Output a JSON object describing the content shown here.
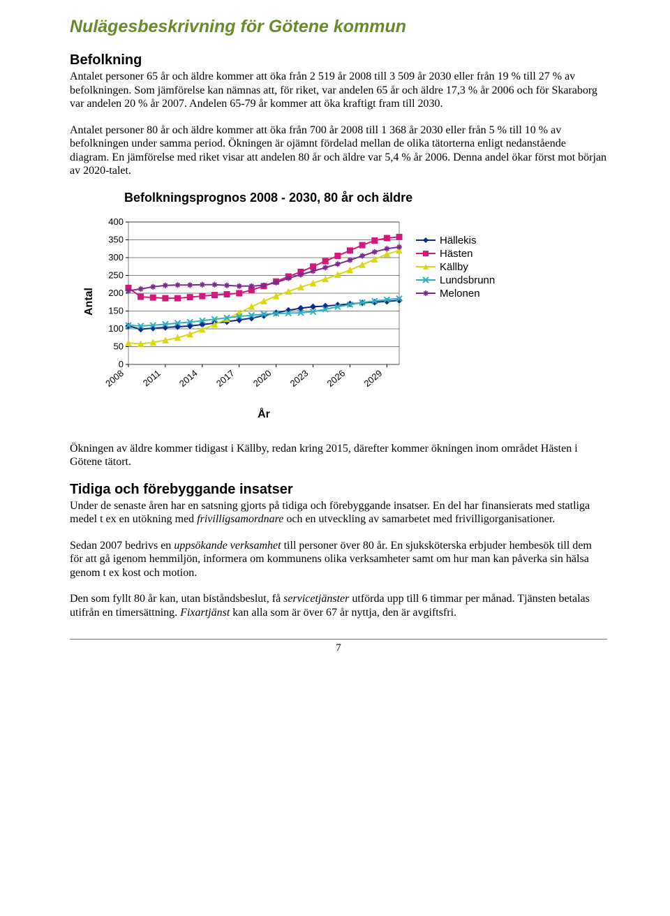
{
  "title": "Nulägesbeskrivning för Götene kommun",
  "sections": {
    "befolkning_h": "Befolkning",
    "befolkning_p1": "Antalet personer 65 år och äldre kommer att öka från 2 519 år 2008 till 3 509 år 2030 eller från 19 % till 27 % av befolkningen.",
    "befolkning_p2": "Som jämförelse kan nämnas att, för riket, var andelen 65 år och äldre 17,3 % år 2006 och för Skaraborg var andelen 20 % år 2007. Andelen 65-79 år kommer att öka kraftigt fram till 2030.",
    "befolkning_p3": "Antalet personer 80 år och äldre kommer att öka från 700 år 2008 till 1 368 år 2030 eller från 5 % till 10 % av befolkningen under samma period. Ökningen är ojämnt fördelad mellan de olika tätorterna enligt nedanstående diagram. En jämförelse med riket visar att andelen 80 år och äldre var 5,4 % år 2006. Denna andel ökar först mot början av 2020-talet.",
    "after_chart_p": "Ökningen av äldre kommer tidigast i Källby, redan kring 2015, därefter kommer ökningen inom området Hästen i Götene tätort.",
    "tidiga_h": "Tidiga och förebyggande insatser",
    "tidiga_p1a": "Under de senaste åren har en satsning gjorts på tidiga och förebyggande insatser. En del har finansierats med statliga medel t ex en utökning med ",
    "tidiga_p1_em": "frivilligsamordnare",
    "tidiga_p1b": " och en utveckling av samarbetet med frivilligorganisationer.",
    "tidiga_p2a": "Sedan 2007 bedrivs en ",
    "tidiga_p2_em": "uppsökande verksamhet",
    "tidiga_p2b": " till personer över 80 år. En sjuksköterska erbjuder hembesök till dem för att gå igenom hemmiljön, informera om kommunens olika verksamheter samt om hur man kan påverka sin hälsa genom t ex kost och motion.",
    "tidiga_p3a": "Den som fyllt 80 år kan, utan biståndsbeslut, få ",
    "tidiga_p3_em1": "servicetjänster",
    "tidiga_p3b": " utförda upp till 6 timmar per månad. Tjänsten betalas utifrån en timersättning. ",
    "tidiga_p3_em2": "Fixartjänst",
    "tidiga_p3c": " kan alla som är över 67 år nyttja, den är avgiftsfri."
  },
  "page_number": "7",
  "chart": {
    "type": "line",
    "title": "Befolkningsprognos 2008 - 2030, 80 år och äldre",
    "xlabel": "År",
    "ylabel": "Antal",
    "background_color": "#ffffff",
    "plot_border_color": "#808080",
    "grid_color": "#000000",
    "ylim": [
      0,
      400
    ],
    "ytick_step": 50,
    "yticks": [
      "0",
      "50",
      "100",
      "150",
      "200",
      "250",
      "300",
      "350",
      "400"
    ],
    "x_categories": [
      "2008",
      "2009",
      "2010",
      "2011",
      "2012",
      "2013",
      "2014",
      "2015",
      "2016",
      "2017",
      "2018",
      "2019",
      "2020",
      "2021",
      "2022",
      "2023",
      "2024",
      "2025",
      "2026",
      "2027",
      "2028",
      "2029",
      "2030"
    ],
    "x_tick_labels": [
      "2008",
      "2011",
      "2014",
      "2017",
      "2020",
      "2023",
      "2026",
      "2029"
    ],
    "x_tick_positions": [
      0,
      3,
      6,
      9,
      12,
      15,
      18,
      21
    ],
    "label_fontsize": 15,
    "title_fontsize": 18,
    "tick_fontsize": 13,
    "line_width": 2,
    "marker_size": 8,
    "series": [
      {
        "name": "Hällekis",
        "color": "#0a2b8a",
        "marker": "diamond",
        "values": [
          108,
          99,
          102,
          104,
          106,
          108,
          112,
          116,
          120,
          125,
          130,
          137,
          145,
          152,
          158,
          162,
          164,
          167,
          170,
          173,
          175,
          177,
          180
        ]
      },
      {
        "name": "Hästen",
        "color": "#d6177a",
        "marker": "square",
        "values": [
          215,
          190,
          188,
          186,
          186,
          189,
          192,
          195,
          197,
          200,
          209,
          220,
          233,
          247,
          260,
          275,
          290,
          305,
          320,
          335,
          348,
          355,
          358
        ]
      },
      {
        "name": "Källby",
        "color": "#d9d90e",
        "marker": "triangle",
        "values": [
          60,
          58,
          62,
          68,
          75,
          85,
          98,
          112,
          128,
          145,
          162,
          178,
          192,
          205,
          217,
          228,
          240,
          252,
          265,
          280,
          295,
          310,
          320
        ]
      },
      {
        "name": "Lundsbrunn",
        "color": "#2fb0bf",
        "marker": "x",
        "values": [
          110,
          108,
          110,
          113,
          116,
          119,
          123,
          127,
          131,
          135,
          138,
          141,
          143,
          144,
          145,
          148,
          155,
          162,
          168,
          174,
          178,
          182,
          185
        ]
      },
      {
        "name": "Melonen",
        "color": "#7a2b8a",
        "marker": "star",
        "values": [
          207,
          212,
          218,
          222,
          223,
          223,
          224,
          224,
          222,
          220,
          220,
          222,
          230,
          242,
          252,
          262,
          272,
          282,
          293,
          305,
          316,
          325,
          330
        ]
      }
    ]
  }
}
